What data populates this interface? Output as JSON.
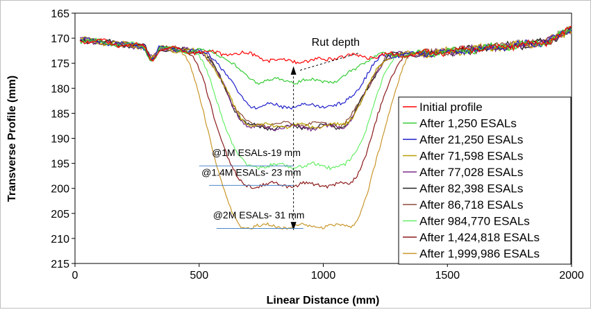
{
  "chart_data": {
    "type": "line",
    "title": "",
    "xlabel": "Linear Distance (mm)",
    "ylabel": "Transverse Profile (mm)",
    "xlim": [
      0,
      2000
    ],
    "ylim": [
      165,
      215
    ],
    "y_inverted": true,
    "x_ticks": [
      0,
      500,
      1000,
      1500,
      2000
    ],
    "y_ticks": [
      165,
      170,
      175,
      180,
      185,
      190,
      195,
      200,
      205,
      210,
      215
    ],
    "grid": false,
    "legend_position": "right",
    "series": [
      {
        "name": "Initial profile",
        "color": "#ff0000",
        "rut_floor": 174.5,
        "width_factor": 0.45
      },
      {
        "name": "After 1,250 ESALs",
        "color": "#33cc33",
        "rut_floor": 178.5,
        "width_factor": 0.85
      },
      {
        "name": "After 21,250 ESALs",
        "color": "#1f1fcc",
        "rut_floor": 183.5,
        "width_factor": 0.95
      },
      {
        "name": "After 71,598 ESALs",
        "color": "#b8a000",
        "rut_floor": 187.5,
        "width_factor": 1.0
      },
      {
        "name": "After 77,028 ESALs",
        "color": "#7a2a8a",
        "rut_floor": 187.8,
        "width_factor": 1.0
      },
      {
        "name": "After 82,398 ESALs",
        "color": "#222222",
        "rut_floor": 187.7,
        "width_factor": 1.0
      },
      {
        "name": "After 86,718 ESALs",
        "color": "#8b4a3a",
        "rut_floor": 187.2,
        "width_factor": 1.0
      },
      {
        "name": "After 984,770 ESALs",
        "color": "#66ee66",
        "rut_floor": 195.5,
        "width_factor": 1.08
      },
      {
        "name": "After 1,424,818 ESALs",
        "color": "#8b1a1a",
        "rut_floor": 199.3,
        "width_factor": 1.15
      },
      {
        "name": "After 1,999,986 ESALs",
        "color": "#c8962a",
        "rut_floor": 207.5,
        "width_factor": 1.22
      }
    ],
    "annotations": [
      {
        "text": "Rut depth",
        "x": 1050,
        "y": 171.5
      },
      {
        "text": "@1M ESALs-19 mm",
        "x": 730,
        "y": 193.5
      },
      {
        "text": "@1.4M ESALs- 23 mm",
        "x": 710,
        "y": 197.5
      },
      {
        "text": "@2M ESALs- 31 mm",
        "x": 740,
        "y": 206
      }
    ]
  }
}
